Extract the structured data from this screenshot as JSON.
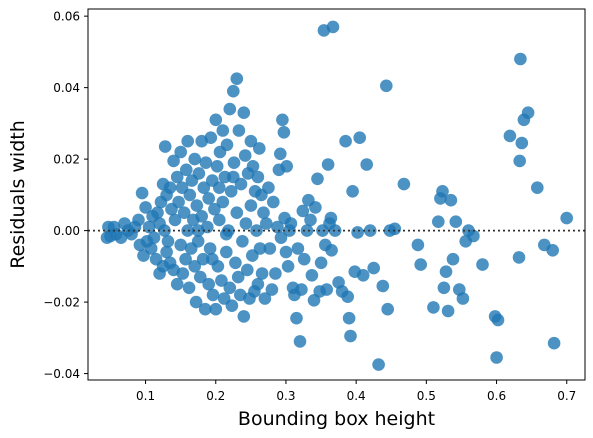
{
  "chart_data": {
    "type": "scatter",
    "title": "",
    "xlabel": "Bounding box height",
    "ylabel": "Residuals width",
    "xlim": [
      0.018,
      0.726
    ],
    "ylim": [
      -0.0418,
      0.062
    ],
    "xticks": [
      0.1,
      0.2,
      0.3,
      0.4,
      0.5,
      0.6,
      0.7
    ],
    "xtick_labels": [
      "0.1",
      "0.2",
      "0.3",
      "0.4",
      "0.5",
      "0.6",
      "0.7"
    ],
    "yticks": [
      -0.04,
      -0.02,
      0.0,
      0.02,
      0.04,
      0.06
    ],
    "ytick_labels": [
      "−0.04",
      "−0.02",
      "0.00",
      "0.02",
      "0.04",
      "0.06"
    ],
    "reference_line": {
      "y": 0.0,
      "style": "dotted",
      "color": "#333333"
    },
    "grid": false,
    "marker_color": "#1f77b4",
    "marker_alpha": 0.8,
    "series": [
      {
        "points": [
          [
            0.045,
            -0.002
          ],
          [
            0.047,
            0.001
          ],
          [
            0.05,
            -0.0015
          ],
          [
            0.055,
            0.001
          ],
          [
            0.058,
            -0.001
          ],
          [
            0.065,
            -0.002
          ],
          [
            0.07,
            0.002
          ],
          [
            0.075,
            0.0
          ],
          [
            0.08,
            -0.001
          ],
          [
            0.085,
            0.001
          ],
          [
            0.09,
            0.003
          ],
          [
            0.092,
            -0.004
          ],
          [
            0.095,
            0.0105
          ],
          [
            0.097,
            -0.007
          ],
          [
            0.1,
            0.0065
          ],
          [
            0.102,
            -0.003
          ],
          [
            0.105,
            0.001
          ],
          [
            0.108,
            -0.005
          ],
          [
            0.11,
            0.004
          ],
          [
            0.112,
            -0.002
          ],
          [
            0.115,
            -0.008
          ],
          [
            0.117,
            0.005
          ],
          [
            0.12,
            -0.012
          ],
          [
            0.12,
            0.002
          ],
          [
            0.122,
            0.008
          ],
          [
            0.125,
            -0.01
          ],
          [
            0.125,
            0.013
          ],
          [
            0.127,
            0.0
          ],
          [
            0.128,
            0.0235
          ],
          [
            0.13,
            -0.006
          ],
          [
            0.13,
            0.01
          ],
          [
            0.132,
            -0.003
          ],
          [
            0.135,
            0.012
          ],
          [
            0.135,
            -0.009
          ],
          [
            0.137,
            0.006
          ],
          [
            0.14,
            -0.011
          ],
          [
            0.14,
            0.0195
          ],
          [
            0.142,
            0.003
          ],
          [
            0.145,
            0.015
          ],
          [
            0.145,
            -0.015
          ],
          [
            0.147,
            0.008
          ],
          [
            0.15,
            -0.004
          ],
          [
            0.15,
            0.022
          ],
          [
            0.152,
            0.012
          ],
          [
            0.153,
            -0.012
          ],
          [
            0.155,
            0.005
          ],
          [
            0.157,
            -0.008
          ],
          [
            0.158,
            0.017
          ],
          [
            0.16,
            0.0
          ],
          [
            0.16,
            0.025
          ],
          [
            0.162,
            -0.016
          ],
          [
            0.163,
            0.01
          ],
          [
            0.165,
            -0.005
          ],
          [
            0.166,
            0.014
          ],
          [
            0.168,
            0.003
          ],
          [
            0.17,
            -0.01
          ],
          [
            0.17,
            0.02
          ],
          [
            0.172,
            -0.02
          ],
          [
            0.173,
            0.007
          ],
          [
            0.175,
            -0.003
          ],
          [
            0.176,
            0.016
          ],
          [
            0.178,
            -0.013
          ],
          [
            0.18,
            0.025
          ],
          [
            0.18,
            0.004
          ],
          [
            0.182,
            -0.008
          ],
          [
            0.183,
            0.012
          ],
          [
            0.185,
            -0.022
          ],
          [
            0.186,
            0.019
          ],
          [
            0.188,
            0.001
          ],
          [
            0.19,
            -0.015
          ],
          [
            0.19,
            0.009
          ],
          [
            0.192,
            -0.005
          ],
          [
            0.193,
            0.026
          ],
          [
            0.195,
            0.014
          ],
          [
            0.196,
            -0.018
          ],
          [
            0.198,
            0.006
          ],
          [
            0.2,
            -0.022
          ],
          [
            0.2,
            0.031
          ],
          [
            0.202,
            0.018
          ],
          [
            0.203,
            -0.01
          ],
          [
            0.205,
            0.003
          ],
          [
            0.206,
            0.022
          ],
          [
            0.208,
            -0.014
          ],
          [
            0.21,
            0.028
          ],
          [
            0.21,
            0.008
          ],
          [
            0.212,
            -0.019
          ],
          [
            0.213,
            0.015
          ],
          [
            0.215,
            -0.006
          ],
          [
            0.216,
            0.024
          ],
          [
            0.218,
            0.0
          ],
          [
            0.22,
            -0.016
          ],
          [
            0.22,
            0.034
          ],
          [
            0.222,
            0.011
          ],
          [
            0.223,
            -0.021
          ],
          [
            0.225,
            0.039
          ],
          [
            0.226,
            0.019
          ],
          [
            0.228,
            -0.009
          ],
          [
            0.23,
            0.0425
          ],
          [
            0.23,
            0.005
          ],
          [
            0.232,
            -0.013
          ],
          [
            0.233,
            0.028
          ],
          [
            0.235,
            -0.018
          ],
          [
            0.236,
            0.013
          ],
          [
            0.238,
            -0.003
          ],
          [
            0.24,
            0.033
          ],
          [
            0.24,
            -0.024
          ],
          [
            0.242,
            0.021
          ],
          [
            0.243,
            0.002
          ],
          [
            0.245,
            -0.011
          ],
          [
            0.246,
            0.016
          ],
          [
            0.248,
            -0.019
          ],
          [
            0.25,
            0.025
          ],
          [
            0.25,
            0.007
          ],
          [
            0.252,
            -0.007
          ],
          [
            0.253,
            0.018
          ],
          [
            0.255,
            -0.017
          ],
          [
            0.256,
            0.011
          ],
          [
            0.258,
            0.0
          ],
          [
            0.26,
            0.015
          ],
          [
            0.26,
            -0.015
          ],
          [
            0.262,
            0.023
          ],
          [
            0.263,
            -0.005
          ],
          [
            0.265,
            0.01
          ],
          [
            0.266,
            -0.012
          ],
          [
            0.268,
            0.005
          ],
          [
            0.27,
            -0.019
          ],
          [
            0.272,
            0.002
          ],
          [
            0.275,
            0.012
          ],
          [
            0.277,
            -0.005
          ],
          [
            0.28,
            -0.0165
          ],
          [
            0.282,
            0.008
          ],
          [
            0.285,
            -0.012
          ],
          [
            0.288,
            0.001
          ],
          [
            0.29,
            0.017
          ],
          [
            0.292,
            0.0215
          ],
          [
            0.293,
            -0.002
          ],
          [
            0.295,
            0.031
          ],
          [
            0.297,
            0.0275
          ],
          [
            0.298,
            0.0035
          ],
          [
            0.3,
            -0.006
          ],
          [
            0.301,
            0.018
          ],
          [
            0.303,
            -0.01
          ],
          [
            0.305,
            0.0
          ],
          [
            0.307,
            0.002
          ],
          [
            0.31,
            -0.016
          ],
          [
            0.312,
            -0.018
          ],
          [
            0.315,
            -0.0245
          ],
          [
            0.317,
            -0.005
          ],
          [
            0.32,
            -0.031
          ],
          [
            0.322,
            -0.0165
          ],
          [
            0.324,
            0.0055
          ],
          [
            0.326,
            -0.008
          ],
          [
            0.33,
            0.0
          ],
          [
            0.332,
            0.0085
          ],
          [
            0.335,
            0.003
          ],
          [
            0.337,
            -0.0125
          ],
          [
            0.34,
            -0.0195
          ],
          [
            0.342,
            0.0065
          ],
          [
            0.345,
            0.0145
          ],
          [
            0.348,
            -0.017
          ],
          [
            0.35,
            -0.009
          ],
          [
            0.352,
            0.0
          ],
          [
            0.354,
            0.056
          ],
          [
            0.356,
            -0.004
          ],
          [
            0.358,
            -0.0165
          ],
          [
            0.36,
            0.0185
          ],
          [
            0.362,
            0.002
          ],
          [
            0.364,
            0.0035
          ],
          [
            0.365,
            -0.0055
          ],
          [
            0.367,
            0.057
          ],
          [
            0.37,
            0.0
          ],
          [
            0.375,
            -0.0145
          ],
          [
            0.38,
            -0.017
          ],
          [
            0.385,
            0.025
          ],
          [
            0.388,
            -0.0185
          ],
          [
            0.39,
            -0.0245
          ],
          [
            0.392,
            -0.0295
          ],
          [
            0.395,
            0.011
          ],
          [
            0.398,
            -0.0115
          ],
          [
            0.402,
            -0.0005
          ],
          [
            0.405,
            0.026
          ],
          [
            0.41,
            -0.0125
          ],
          [
            0.415,
            0.0185
          ],
          [
            0.42,
            0.0
          ],
          [
            0.425,
            -0.0105
          ],
          [
            0.432,
            -0.0375
          ],
          [
            0.438,
            -0.0155
          ],
          [
            0.443,
            0.0405
          ],
          [
            0.445,
            -0.022
          ],
          [
            0.448,
            0.0
          ],
          [
            0.455,
            0.0005
          ],
          [
            0.468,
            0.013
          ],
          [
            0.488,
            -0.004
          ],
          [
            0.492,
            -0.0095
          ],
          [
            0.51,
            -0.0215
          ],
          [
            0.517,
            0.0025
          ],
          [
            0.52,
            0.009
          ],
          [
            0.523,
            0.011
          ],
          [
            0.525,
            -0.016
          ],
          [
            0.528,
            -0.0115
          ],
          [
            0.531,
            -0.0225
          ],
          [
            0.535,
            0.0085
          ],
          [
            0.538,
            -0.008
          ],
          [
            0.542,
            0.0025
          ],
          [
            0.547,
            -0.0165
          ],
          [
            0.552,
            -0.019
          ],
          [
            0.556,
            -0.003
          ],
          [
            0.56,
            0.0
          ],
          [
            0.567,
            -0.0015
          ],
          [
            0.58,
            -0.0095
          ],
          [
            0.598,
            -0.024
          ],
          [
            0.6,
            -0.0355
          ],
          [
            0.602,
            -0.025
          ],
          [
            0.619,
            0.0265
          ],
          [
            0.632,
            -0.0075
          ],
          [
            0.633,
            0.0195
          ],
          [
            0.634,
            0.048
          ],
          [
            0.636,
            0.0245
          ],
          [
            0.639,
            0.031
          ],
          [
            0.645,
            0.033
          ],
          [
            0.658,
            0.012
          ],
          [
            0.668,
            -0.004
          ],
          [
            0.68,
            -0.0055
          ],
          [
            0.682,
            -0.0315
          ],
          [
            0.7,
            0.0035
          ],
          [
            0.215,
            -0.001
          ],
          [
            0.205,
            0.012
          ],
          [
            0.225,
            0.015
          ],
          [
            0.195,
            -0.008
          ],
          [
            0.175,
            0.0
          ]
        ]
      }
    ]
  }
}
